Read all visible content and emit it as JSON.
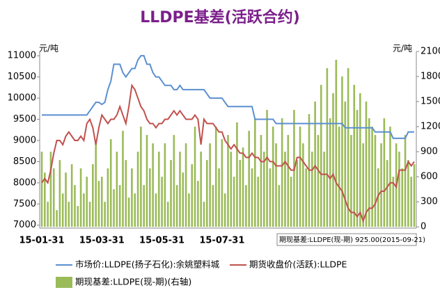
{
  "chart_data": {
    "type": "bar-line",
    "title": "LLDPE基差(活跃合约)",
    "y_unit": "元/吨",
    "y2_unit": "元/吨",
    "annotation": "期现基差:LLDPE(现-期)  925.00(2015-09-21)",
    "categories": [
      "15-01-31",
      null,
      null,
      null,
      null,
      null,
      null,
      null,
      null,
      null,
      null,
      null,
      null,
      null,
      null,
      null,
      null,
      null,
      null,
      null,
      "15-03-31",
      null,
      null,
      null,
      null,
      null,
      null,
      null,
      null,
      null,
      null,
      null,
      null,
      null,
      null,
      null,
      null,
      null,
      null,
      null,
      "15-05-31",
      null,
      null,
      null,
      null,
      null,
      null,
      null,
      null,
      null,
      null,
      null,
      null,
      null,
      null,
      null,
      null,
      null,
      null,
      null,
      "15-07-31",
      null,
      null,
      null,
      null,
      null,
      null,
      null,
      null,
      null,
      null,
      null,
      null,
      null,
      null,
      null,
      null,
      null,
      null,
      null,
      null,
      null,
      null,
      null,
      null,
      null,
      null,
      null,
      null,
      null,
      null,
      null,
      null,
      null,
      null,
      null,
      null,
      null,
      null,
      null,
      null,
      null,
      null,
      null,
      null,
      null,
      null,
      null,
      null,
      null,
      null,
      null,
      null,
      null,
      null,
      null,
      null,
      null,
      null,
      null,
      null,
      null,
      null,
      null,
      null
    ],
    "ylim": [
      6930,
      11200
    ],
    "yticks": [
      7000,
      7500,
      8000,
      8500,
      9000,
      9500,
      10000,
      10500,
      11000
    ],
    "y2lim": [
      -15,
      2150
    ],
    "y2ticks": [
      0,
      300,
      600,
      900,
      1200,
      1500,
      1800,
      2100
    ],
    "series": [
      {
        "name": "市场价:LLDPE(扬子石化):余姚塑料城",
        "type": "line",
        "color": "#5b8fd0",
        "values": [
          9600,
          9600,
          9600,
          9600,
          9600,
          9600,
          9600,
          9600,
          9600,
          9600,
          9600,
          9600,
          9600,
          9600,
          9600,
          9600,
          9700,
          9800,
          9900,
          9900,
          9850,
          9900,
          10200,
          10400,
          10800,
          10800,
          10800,
          10600,
          10500,
          10600,
          10700,
          10700,
          10900,
          11000,
          11000,
          10800,
          10800,
          10600,
          10500,
          10500,
          10400,
          10300,
          10300,
          10300,
          10200,
          10200,
          10300,
          10200,
          10200,
          10200,
          10200,
          10200,
          10200,
          10200,
          10200,
          10100,
          10000,
          10000,
          10000,
          10000,
          10000,
          9900,
          9800,
          9800,
          9800,
          9800,
          9800,
          9800,
          9800,
          9800,
          9800,
          9500,
          9500,
          9500,
          9500,
          9500,
          9500,
          9500,
          9400,
          9400,
          9400,
          9400,
          9400,
          9400,
          9400,
          9400,
          9400,
          9400,
          9400,
          9400,
          9400,
          9400,
          9400,
          9400,
          9400,
          9400,
          9400,
          9400,
          9400,
          9400,
          9400,
          9300,
          9300,
          9300,
          9300,
          9300,
          9300,
          9300,
          9300,
          9300,
          9300,
          9200,
          9200,
          9200,
          9200,
          9200,
          9200,
          9050,
          9050,
          9050,
          9050,
          9050,
          9200,
          9200,
          9200
        ]
      },
      {
        "name": "期货收盘价(活跃):LLDPE",
        "type": "line",
        "color": "#c0504d",
        "values": [
          8000,
          8100,
          8000,
          8300,
          8700,
          9000,
          9000,
          8900,
          9100,
          9200,
          9100,
          9000,
          9000,
          9100,
          9000,
          9400,
          9500,
          9300,
          8900,
          9300,
          9600,
          9500,
          9400,
          9500,
          9500,
          9600,
          9800,
          9600,
          9400,
          9800,
          10300,
          10200,
          10000,
          9800,
          9700,
          9500,
          9400,
          9400,
          9300,
          9400,
          9400,
          9500,
          9500,
          9600,
          9700,
          9600,
          9700,
          9600,
          9500,
          9500,
          9500,
          9600,
          9500,
          8900,
          9500,
          9400,
          9400,
          9400,
          9300,
          9200,
          9200,
          9000,
          8900,
          8800,
          8900,
          8800,
          8700,
          8700,
          8600,
          8600,
          8700,
          8600,
          8600,
          8500,
          8500,
          8600,
          8500,
          8500,
          8400,
          8400,
          8400,
          8500,
          8400,
          8300,
          8300,
          8600,
          8600,
          8500,
          8400,
          8300,
          8300,
          8400,
          8300,
          8200,
          8200,
          8200,
          8100,
          8200,
          8000,
          7900,
          7800,
          7600,
          7400,
          7300,
          7300,
          7200,
          7300,
          7100,
          7300,
          7400,
          7400,
          7500,
          7700,
          7800,
          7800,
          7900,
          8000,
          8000,
          7900,
          8300,
          8300,
          8300,
          8500,
          8400,
          8500
        ]
      },
      {
        "name": "期现基差:LLDPE(现-期)(右轴)",
        "type": "bar",
        "axis": "y2",
        "color": "#9bbb59",
        "values": [
          900,
          650,
          300,
          900,
          700,
          200,
          800,
          400,
          650,
          300,
          750,
          500,
          250,
          700,
          400,
          600,
          300,
          750,
          1000,
          550,
          600,
          300,
          700,
          1050,
          450,
          900,
          500,
          1150,
          800,
          350,
          700,
          400,
          900,
          1200,
          500,
          1100,
          700,
          1000,
          400,
          900,
          600,
          1000,
          300,
          800,
          1100,
          500,
          900,
          650,
          1000,
          400,
          750,
          1200,
          550,
          900,
          300,
          800,
          1000,
          500,
          1200,
          700,
          1050,
          400,
          1100,
          900,
          600,
          1250,
          800,
          950,
          500,
          1150,
          700,
          1300,
          600,
          1100,
          900,
          1400,
          700,
          1200,
          1000,
          500,
          1300,
          900,
          1100,
          600,
          1400,
          800,
          1200,
          1000,
          700,
          1350,
          900,
          1500,
          1100,
          1700,
          900,
          1900,
          1300,
          1600,
          2000,
          1200,
          1800,
          1500,
          1900,
          1100,
          1700,
          1400,
          1600,
          1000,
          1500,
          1300,
          1200,
          1100,
          700,
          1000,
          1300,
          800,
          1200,
          600,
          1000,
          900,
          700,
          1100,
          800,
          600,
          750
        ]
      }
    ]
  }
}
